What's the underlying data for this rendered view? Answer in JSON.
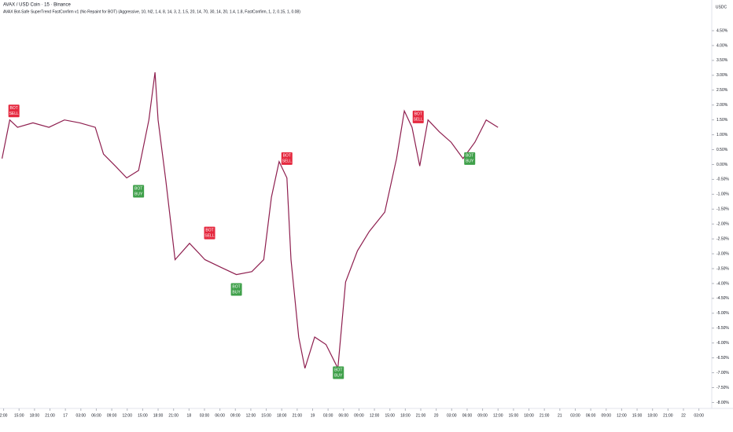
{
  "chart_data": {
    "type": "line",
    "title": "AVAX / USD Coin · 15 · Binance",
    "subtitle": "AVAX Bot-Safe SuperTrend FastConfirm v1 (No Repaint for BOT) (Aggressive, 10, hl2, 1.4, 8, 14, 3, 2, 1.5, 20, 14, 70, 30, 14, 20, 1.4, 1.8, FastConfirm, 1, 2, 0.15, 1, 0.08)",
    "currency": "USDC",
    "x": [
      11.7,
      13.2,
      14.7,
      17.7,
      20.8,
      23.8,
      26.8,
      29.8,
      31.4,
      33.7,
      35.9,
      38.2,
      40.2,
      41.4,
      42.0,
      43.5,
      45.3,
      48.1,
      51.1,
      54.1,
      57.2,
      60.2,
      62.5,
      64.0,
      65.5,
      67.0,
      67.8,
      69.3,
      70.5,
      72.4,
      74.6,
      76.9,
      78.4,
      80.7,
      83.0,
      86.0,
      88.3,
      89.8,
      91.3,
      92.8,
      94.4,
      96.6,
      98.9,
      101.2,
      103.5,
      105.7,
      108.0
    ],
    "series": [
      {
        "name": "AVAX / USD Coin",
        "color": "#8e1f4f",
        "values": [
          0.2,
          1.5,
          1.25,
          1.4,
          1.25,
          1.5,
          1.4,
          1.25,
          0.35,
          -0.05,
          -0.45,
          -0.2,
          1.5,
          3.1,
          1.5,
          -0.55,
          -3.2,
          -2.65,
          -3.2,
          -3.45,
          -3.7,
          -3.6,
          -3.2,
          -1.1,
          0.1,
          -0.45,
          -3.2,
          -5.8,
          -6.85,
          -5.8,
          -6.05,
          -6.85,
          -3.95,
          -2.9,
          -2.25,
          -1.6,
          0.2,
          1.8,
          1.25,
          -0.05,
          1.5,
          1.1,
          0.75,
          0.2,
          0.75,
          1.5,
          1.25
        ]
      }
    ],
    "signals": [
      {
        "lines": [
          "BOT",
          "SELL"
        ],
        "x": 14.0,
        "value": 1.8,
        "color": "#e5293f"
      },
      {
        "lines": [
          "BOT",
          "BUY"
        ],
        "x": 38.2,
        "value": -0.9,
        "color": "#3fa04a"
      },
      {
        "lines": [
          "BOT",
          "SELL"
        ],
        "x": 52.0,
        "value": -2.3,
        "color": "#e5293f"
      },
      {
        "lines": [
          "BOT",
          "BUY"
        ],
        "x": 57.2,
        "value": -4.2,
        "color": "#3fa04a"
      },
      {
        "lines": [
          "BOT",
          "SELL"
        ],
        "x": 67.0,
        "value": 0.2,
        "color": "#e5293f"
      },
      {
        "lines": [
          "BOT",
          "BUY"
        ],
        "x": 77.0,
        "value": -7.0,
        "color": "#3fa04a"
      },
      {
        "lines": [
          "BOT",
          "SELL"
        ],
        "x": 92.5,
        "value": 1.6,
        "color": "#e5293f"
      },
      {
        "lines": [
          "BOT",
          "BUY"
        ],
        "x": 102.5,
        "value": 0.2,
        "color": "#3fa04a"
      }
    ],
    "xlim": [
      11.3,
      149.5
    ],
    "xticks": [
      {
        "value": 12,
        "label": "2:00"
      },
      {
        "value": 15,
        "label": "15:00"
      },
      {
        "value": 18,
        "label": "18:00"
      },
      {
        "value": 21,
        "label": "21:00"
      },
      {
        "value": 24,
        "label": "17"
      },
      {
        "value": 27,
        "label": "03:00"
      },
      {
        "value": 30,
        "label": "06:00"
      },
      {
        "value": 33,
        "label": "09:00"
      },
      {
        "value": 36,
        "label": "12:00"
      },
      {
        "value": 39,
        "label": "15:00"
      },
      {
        "value": 42,
        "label": "18:00"
      },
      {
        "value": 45,
        "label": "21:00"
      },
      {
        "value": 48,
        "label": "18"
      },
      {
        "value": 51,
        "label": "03:00"
      },
      {
        "value": 54,
        "label": "06:00"
      },
      {
        "value": 57,
        "label": "09:00"
      },
      {
        "value": 60,
        "label": "12:00"
      },
      {
        "value": 63,
        "label": "15:00"
      },
      {
        "value": 66,
        "label": "18:00"
      },
      {
        "value": 69,
        "label": "21:00"
      },
      {
        "value": 72,
        "label": "19"
      },
      {
        "value": 75,
        "label": "03:00"
      },
      {
        "value": 78,
        "label": "06:00"
      },
      {
        "value": 81,
        "label": "09:00"
      },
      {
        "value": 84,
        "label": "12:00"
      },
      {
        "value": 87,
        "label": "15:00"
      },
      {
        "value": 90,
        "label": "18:00"
      },
      {
        "value": 93,
        "label": "21:00"
      },
      {
        "value": 96,
        "label": "20"
      },
      {
        "value": 99,
        "label": "03:00"
      },
      {
        "value": 102,
        "label": "06:00"
      },
      {
        "value": 105,
        "label": "09:00"
      },
      {
        "value": 108,
        "label": "12:00"
      },
      {
        "value": 111,
        "label": "15:00"
      },
      {
        "value": 114,
        "label": "18:00"
      },
      {
        "value": 117,
        "label": "21:00"
      },
      {
        "value": 120,
        "label": "21"
      },
      {
        "value": 123,
        "label": "03:00"
      },
      {
        "value": 126,
        "label": "06:00"
      },
      {
        "value": 129,
        "label": "09:00"
      },
      {
        "value": 132,
        "label": "12:00"
      },
      {
        "value": 135,
        "label": "15:00"
      },
      {
        "value": 138,
        "label": "18:00"
      },
      {
        "value": 141,
        "label": "21:00"
      },
      {
        "value": 144,
        "label": "22"
      },
      {
        "value": 147,
        "label": "03:00"
      }
    ],
    "ylim": [
      -8.2,
      4.95
    ],
    "yticks": [
      {
        "value": 4.5,
        "label": "4.50%"
      },
      {
        "value": 4,
        "label": "4.00%"
      },
      {
        "value": 3.5,
        "label": "3.50%"
      },
      {
        "value": 3,
        "label": "3.00%"
      },
      {
        "value": 2.5,
        "label": "2.50%"
      },
      {
        "value": 2,
        "label": "2.00%"
      },
      {
        "value": 1.5,
        "label": "1.50%"
      },
      {
        "value": 1,
        "label": "1.00%"
      },
      {
        "value": 0.5,
        "label": "0.50%"
      },
      {
        "value": 0,
        "label": "0.00%"
      },
      {
        "value": -0.5,
        "label": "-0.50%"
      },
      {
        "value": -1,
        "label": "-1.00%"
      },
      {
        "value": -1.5,
        "label": "-1.50%"
      },
      {
        "value": -2,
        "label": "-2.00%"
      },
      {
        "value": -2.5,
        "label": "-2.50%"
      },
      {
        "value": -3,
        "label": "-3.00%"
      },
      {
        "value": -3.5,
        "label": "-3.50%"
      },
      {
        "value": -4,
        "label": "-4.00%"
      },
      {
        "value": -4.5,
        "label": "-4.50%"
      },
      {
        "value": -5,
        "label": "-5.00%"
      },
      {
        "value": -5.5,
        "label": "-5.50%"
      },
      {
        "value": -6,
        "label": "-6.00%"
      },
      {
        "value": -6.5,
        "label": "-6.50%"
      },
      {
        "value": -7,
        "label": "-7.00%"
      },
      {
        "value": -7.5,
        "label": "-7.50%"
      },
      {
        "value": -8,
        "label": "-8.00%"
      }
    ],
    "grid": false
  }
}
